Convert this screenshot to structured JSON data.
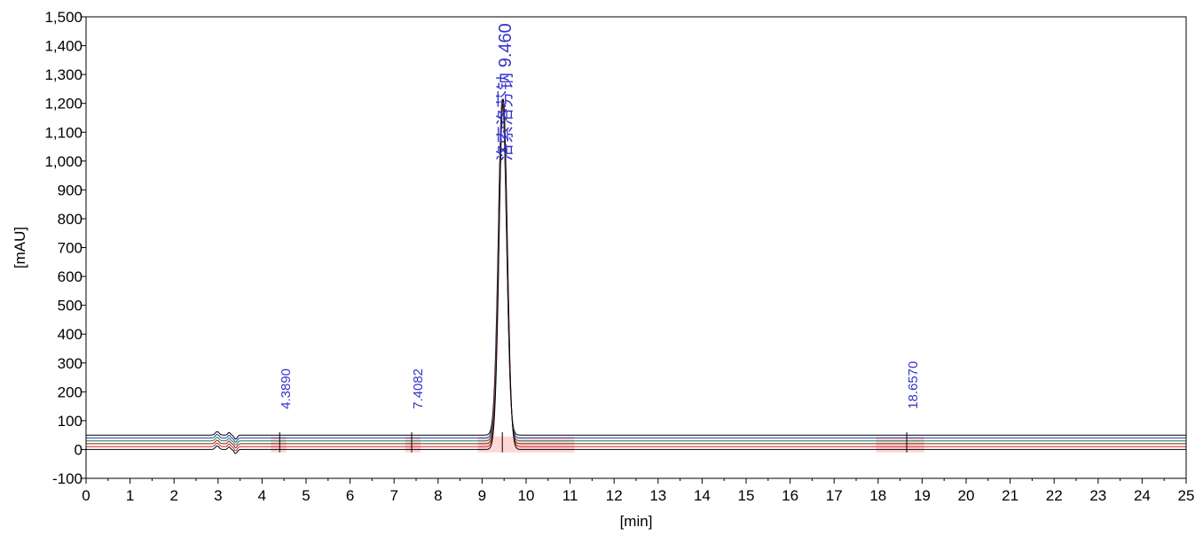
{
  "chart_data": {
    "type": "line",
    "title": "",
    "xlabel": "[min]",
    "ylabel": "[mAU]",
    "xlim": [
      0,
      25
    ],
    "ylim": [
      -100,
      1500
    ],
    "x_ticks": [
      0,
      1,
      2,
      3,
      4,
      5,
      6,
      7,
      8,
      9,
      10,
      11,
      12,
      13,
      14,
      15,
      16,
      17,
      18,
      19,
      20,
      21,
      22,
      23,
      24,
      25
    ],
    "y_ticks": [
      -100,
      0,
      100,
      200,
      300,
      400,
      500,
      600,
      700,
      800,
      900,
      1000,
      1100,
      1200,
      1300,
      1400,
      1500
    ],
    "grid": false,
    "legend": "none",
    "series": [
      {
        "color": "#000000",
        "baseline": 50
      },
      {
        "color": "#1f3fbf",
        "baseline": 40
      },
      {
        "color": "#1f7f3f",
        "baseline": 30
      },
      {
        "color": "#7f1f1f",
        "baseline": 20
      },
      {
        "color": "#cc2222",
        "baseline": 10
      },
      {
        "color": "#000000",
        "baseline": 0
      }
    ],
    "main_peak": {
      "time": 9.46,
      "height": 1215
    },
    "peak_annotations": [
      {
        "time": 4.4,
        "text": "4.3890"
      },
      {
        "time": 7.4,
        "text": "7.4082"
      },
      {
        "time": 9.46,
        "text": "洛索洛芬钠 9.460"
      },
      {
        "time": 18.65,
        "text": "18.6570"
      }
    ],
    "integration_marks": [
      {
        "from": 4.2,
        "to": 4.55
      },
      {
        "from": 7.25,
        "to": 7.6
      },
      {
        "from": 8.9,
        "to": 11.1
      },
      {
        "from": 17.95,
        "to": 19.05
      }
    ]
  }
}
